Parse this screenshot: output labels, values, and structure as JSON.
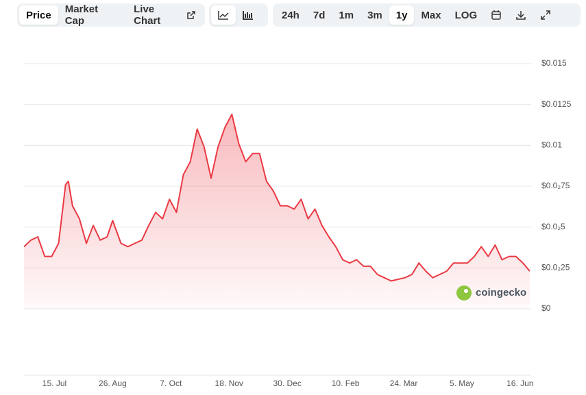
{
  "toolbar": {
    "tabs": [
      "Price",
      "Market Cap",
      "Live Chart"
    ],
    "ranges": [
      "24h",
      "7d",
      "1m",
      "3m",
      "1y",
      "Max"
    ],
    "scale": "LOG"
  },
  "chart_data": {
    "type": "line",
    "watermark": "coingecko",
    "x": [
      0,
      5,
      10,
      15,
      20,
      25,
      30,
      32,
      35,
      40,
      45,
      50,
      55,
      60,
      64,
      70,
      75,
      80,
      85,
      90,
      95,
      100,
      105,
      110,
      115,
      120,
      125,
      130,
      135,
      140,
      145,
      150,
      155,
      160,
      165,
      170,
      175,
      180,
      185,
      190,
      195,
      200,
      205,
      210,
      215,
      220,
      225,
      230,
      235,
      240,
      245,
      250,
      255,
      260,
      265,
      270,
      275,
      280,
      285,
      290,
      295,
      300,
      305,
      310,
      315,
      320,
      325,
      330,
      335,
      340,
      345,
      350,
      355,
      360,
      365
    ],
    "series": [
      {
        "name": "Price",
        "color": "#ea3943",
        "values": [
          0.0038,
          0.0042,
          0.0044,
          0.0032,
          0.0032,
          0.004,
          0.0076,
          0.0078,
          0.0063,
          0.0055,
          0.004,
          0.0051,
          0.0042,
          0.0044,
          0.0054,
          0.004,
          0.0038,
          0.004,
          0.0042,
          0.0051,
          0.0059,
          0.0055,
          0.0067,
          0.0059,
          0.0082,
          0.009,
          0.011,
          0.0099,
          0.008,
          0.0099,
          0.0111,
          0.0119,
          0.0101,
          0.009,
          0.0095,
          0.0095,
          0.0078,
          0.0072,
          0.0063,
          0.0063,
          0.0061,
          0.0067,
          0.0055,
          0.0061,
          0.0051,
          0.0044,
          0.0038,
          0.003,
          0.0028,
          0.003,
          0.0026,
          0.0026,
          0.0021,
          0.0019,
          0.0017,
          0.0018,
          0.0019,
          0.0021,
          0.0028,
          0.0023,
          0.0019,
          0.0021,
          0.0023,
          0.0028,
          0.0028,
          0.0028,
          0.0032,
          0.0038,
          0.0032,
          0.0039,
          0.003,
          0.0032,
          0.0032,
          0.0028,
          0.0023
        ]
      }
    ],
    "xlim": [
      0,
      366
    ],
    "xticks": [
      {
        "value": 22,
        "label": "15. Jul"
      },
      {
        "value": 64,
        "label": "26. Aug"
      },
      {
        "value": 106,
        "label": "7. Oct"
      },
      {
        "value": 148,
        "label": "18. Nov"
      },
      {
        "value": 190,
        "label": "30. Dec"
      },
      {
        "value": 232,
        "label": "10. Feb"
      },
      {
        "value": 274,
        "label": "24. Mar"
      },
      {
        "value": 316,
        "label": "5. May"
      },
      {
        "value": 358,
        "label": "16. Jun"
      }
    ],
    "ylim": [
      0,
      0.015
    ],
    "yticks": [
      {
        "value": 0,
        "label": "$0"
      },
      {
        "value": 0.0025,
        "label": "$0.0₂25"
      },
      {
        "value": 0.005,
        "label": "$0.0₂5"
      },
      {
        "value": 0.0075,
        "label": "$0.0₂75"
      },
      {
        "value": 0.01,
        "label": "$0.01"
      },
      {
        "value": 0.0125,
        "label": "$0.0125"
      },
      {
        "value": 0.015,
        "label": "$0.015"
      }
    ],
    "grid": true
  }
}
